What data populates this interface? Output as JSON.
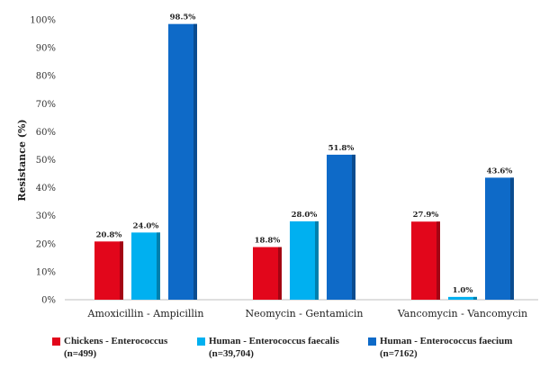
{
  "chart_data": {
    "type": "bar",
    "title": "",
    "xlabel": "",
    "ylabel": "Resistance (%)",
    "ylim": [
      0,
      100
    ],
    "ytick_step": 10,
    "ytick_suffix": "%",
    "categories": [
      "Amoxicillin - Ampicillin",
      "Neomycin - Gentamicin",
      "Vancomycin - Vancomycin"
    ],
    "series": [
      {
        "name": "Chickens - Enterococcus",
        "n_label": "(n=499)",
        "color": "#e2061b",
        "values": [
          20.8,
          18.8,
          27.9
        ],
        "labels": [
          "20.8%",
          "18.8%",
          "27.9%"
        ]
      },
      {
        "name": "Human - Enterococcus faecalis",
        "n_label": "(n=39,704)",
        "color": "#00b0f0",
        "values": [
          24.0,
          28.0,
          1.0
        ],
        "labels": [
          "24.0%",
          "28.0%",
          "1.0%"
        ]
      },
      {
        "name": "Human - Enterococcus faecium",
        "n_label": "(n=7162)",
        "color": "#0e6ac8",
        "values": [
          98.5,
          51.8,
          43.6
        ],
        "labels": [
          "98.5%",
          "51.8%",
          "43.6%"
        ]
      }
    ],
    "grid": false,
    "legend_position": "bottom"
  }
}
